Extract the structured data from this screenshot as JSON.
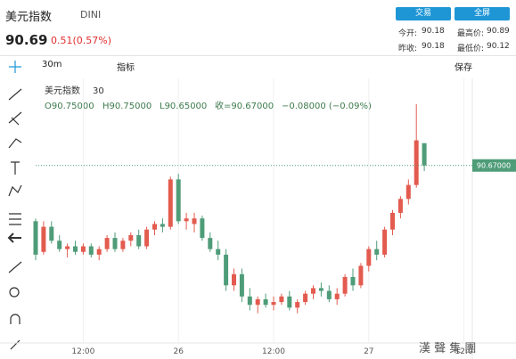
{
  "header": {
    "symbol": "美元指数",
    "code": "DINI",
    "price": "90.69",
    "change": "0.51(0.57%)",
    "buttons": [
      "交易",
      "全屏"
    ],
    "stats": [
      [
        "今开:",
        "90.18"
      ],
      [
        "最高价:",
        "90.89"
      ],
      [
        "昨收:",
        "90.18"
      ],
      [
        "最低价:",
        "90.12"
      ]
    ]
  },
  "toolbar": {
    "interval": "30m",
    "indicators": "指标",
    "save": "保存"
  },
  "legend": {
    "name": "美元指数",
    "interval": "30",
    "open": "O90.75000",
    "high": "H90.75000",
    "low": "L90.65000",
    "close": "收=90.67000",
    "change": "−0.08000 (−0.09%)"
  },
  "watermark": "漢 聲 集 團",
  "chart_data": {
    "type": "candlestick",
    "categories": [
      null,
      null,
      null,
      null,
      null,
      null,
      "12:00",
      null,
      null,
      null,
      null,
      null,
      null,
      null,
      null,
      null,
      null,
      null,
      "26",
      null,
      null,
      null,
      null,
      null,
      null,
      null,
      null,
      null,
      null,
      null,
      "12:00",
      null,
      null,
      null,
      null,
      null,
      null,
      null,
      null,
      null,
      null,
      null,
      "27",
      null,
      null,
      null,
      null,
      null,
      null,
      null,
      null,
      null,
      null,
      null,
      "12:0",
      null
    ],
    "open": [
      90.47,
      90.36,
      90.45,
      90.4,
      90.37,
      90.38,
      90.36,
      90.38,
      90.35,
      90.37,
      90.41,
      90.37,
      90.4,
      90.42,
      90.38,
      90.44,
      90.46,
      90.45,
      90.62,
      90.47,
      90.46,
      90.48,
      90.41,
      90.37,
      90.35,
      90.24,
      90.28,
      90.2,
      90.17,
      90.19,
      90.17,
      90.18,
      90.2,
      90.16,
      90.18,
      90.21,
      90.23,
      90.22,
      90.19,
      90.21,
      90.27,
      90.24,
      90.31,
      90.37,
      90.35,
      90.44,
      90.5,
      90.55,
      90.6,
      90.75,
      null,
      null,
      null,
      null,
      null,
      null
    ],
    "high": [
      90.48,
      90.47,
      90.47,
      90.42,
      90.39,
      90.4,
      90.39,
      90.39,
      90.38,
      90.42,
      90.43,
      90.41,
      90.43,
      90.44,
      90.45,
      90.47,
      90.48,
      90.63,
      90.64,
      90.5,
      90.5,
      90.49,
      90.43,
      90.4,
      90.37,
      90.3,
      90.3,
      90.23,
      90.2,
      90.21,
      90.2,
      90.21,
      90.22,
      90.19,
      90.22,
      90.24,
      90.25,
      90.24,
      90.23,
      90.28,
      90.3,
      90.32,
      90.38,
      90.4,
      90.45,
      90.51,
      90.56,
      90.62,
      90.89,
      90.75,
      null,
      null,
      null,
      null,
      null,
      null
    ],
    "low": [
      90.33,
      90.35,
      90.39,
      90.36,
      90.34,
      90.35,
      90.35,
      90.34,
      90.33,
      90.36,
      90.36,
      90.36,
      90.38,
      90.37,
      90.37,
      90.42,
      90.43,
      90.44,
      90.46,
      90.44,
      90.43,
      90.4,
      90.36,
      90.33,
      90.22,
      90.22,
      90.18,
      90.15,
      90.14,
      90.16,
      90.15,
      90.17,
      90.15,
      90.14,
      90.17,
      90.19,
      90.2,
      90.18,
      90.17,
      90.2,
      90.22,
      90.23,
      90.29,
      90.33,
      90.34,
      90.42,
      90.48,
      90.53,
      90.59,
      90.65,
      null,
      null,
      null,
      null,
      null,
      null
    ],
    "close": [
      90.35,
      90.45,
      90.4,
      90.37,
      90.38,
      90.36,
      90.38,
      90.35,
      90.37,
      90.41,
      90.37,
      90.4,
      90.42,
      90.38,
      90.44,
      90.46,
      90.45,
      90.62,
      90.47,
      90.48,
      90.48,
      90.41,
      90.37,
      90.35,
      90.24,
      90.28,
      90.2,
      90.17,
      90.19,
      90.17,
      90.18,
      90.2,
      90.16,
      90.18,
      90.21,
      90.23,
      90.22,
      90.19,
      90.21,
      90.27,
      90.24,
      90.31,
      90.37,
      90.35,
      90.44,
      90.5,
      90.55,
      90.6,
      90.76,
      90.67,
      null,
      null,
      null,
      null,
      null,
      null
    ],
    "ylim": [
      90.03,
      90.96
    ],
    "last_price": {
      "value": 90.67,
      "label": "90.67000"
    },
    "up_color": "#e35b4f",
    "down_color": "#4f9c79"
  }
}
